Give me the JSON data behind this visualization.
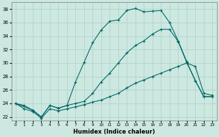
{
  "xlabel": "Humidex (Indice chaleur)",
  "xlim": [
    -0.5,
    23.5
  ],
  "ylim": [
    21.5,
    39.0
  ],
  "yticks": [
    22,
    24,
    26,
    28,
    30,
    32,
    34,
    36,
    38
  ],
  "xticks": [
    0,
    1,
    2,
    3,
    4,
    5,
    6,
    7,
    8,
    9,
    10,
    11,
    12,
    13,
    14,
    15,
    16,
    17,
    18,
    19,
    20,
    21,
    22,
    23
  ],
  "xtick_labels": [
    "0",
    "1",
    "2",
    "3",
    "4",
    "5",
    "6",
    "7",
    "8",
    "9",
    "10",
    "11",
    "12",
    "13",
    "14",
    "15",
    "16",
    "17",
    "18",
    "19",
    "20",
    "21",
    "22",
    "23"
  ],
  "bg_color": "#cce8e0",
  "grid_color": "#aacfc7",
  "line_color": "#006666",
  "curve1_x": [
    0,
    1,
    2,
    3,
    4,
    5,
    6,
    7,
    8,
    9,
    10,
    11,
    12,
    13,
    14,
    15,
    16,
    17,
    18,
    19,
    20,
    21,
    22,
    23
  ],
  "curve1_y": [
    24.0,
    23.7,
    23.0,
    22.0,
    23.7,
    23.3,
    23.7,
    27.2,
    30.1,
    33.0,
    34.9,
    36.2,
    36.4,
    37.8,
    38.1,
    37.6,
    37.7,
    37.8,
    36.0,
    33.3,
    30.2,
    27.4,
    25.0,
    25.0
  ],
  "curve1_markers": [
    0,
    1,
    2,
    3,
    4,
    5,
    6,
    7,
    8,
    9,
    10,
    11,
    12,
    13,
    14,
    15,
    16,
    17,
    18,
    19,
    20,
    21,
    22,
    23
  ],
  "curve2_x": [
    0,
    2,
    3,
    4,
    5,
    6,
    7,
    8,
    9,
    10,
    11,
    12,
    13,
    14,
    15,
    16,
    17,
    18,
    19,
    20,
    21,
    22,
    23
  ],
  "curve2_y": [
    24.0,
    23.0,
    22.0,
    23.7,
    23.3,
    23.7,
    24.0,
    24.3,
    25.5,
    27.2,
    28.5,
    30.0,
    31.5,
    32.6,
    33.3,
    34.3,
    35.0,
    35.0,
    33.2,
    30.1,
    27.4,
    25.0,
    25.0
  ],
  "curve3_x": [
    0,
    1,
    2,
    3,
    4,
    5,
    6,
    7,
    8,
    9,
    10,
    11,
    12,
    13,
    14,
    15,
    16,
    17,
    18,
    19,
    20,
    21,
    22,
    23
  ],
  "curve3_y": [
    24.0,
    23.2,
    22.8,
    21.8,
    23.2,
    22.9,
    23.2,
    23.5,
    23.8,
    24.2,
    24.5,
    25.0,
    25.5,
    26.3,
    27.0,
    27.5,
    28.0,
    28.5,
    29.0,
    29.5,
    30.0,
    29.5,
    25.5,
    25.2
  ]
}
